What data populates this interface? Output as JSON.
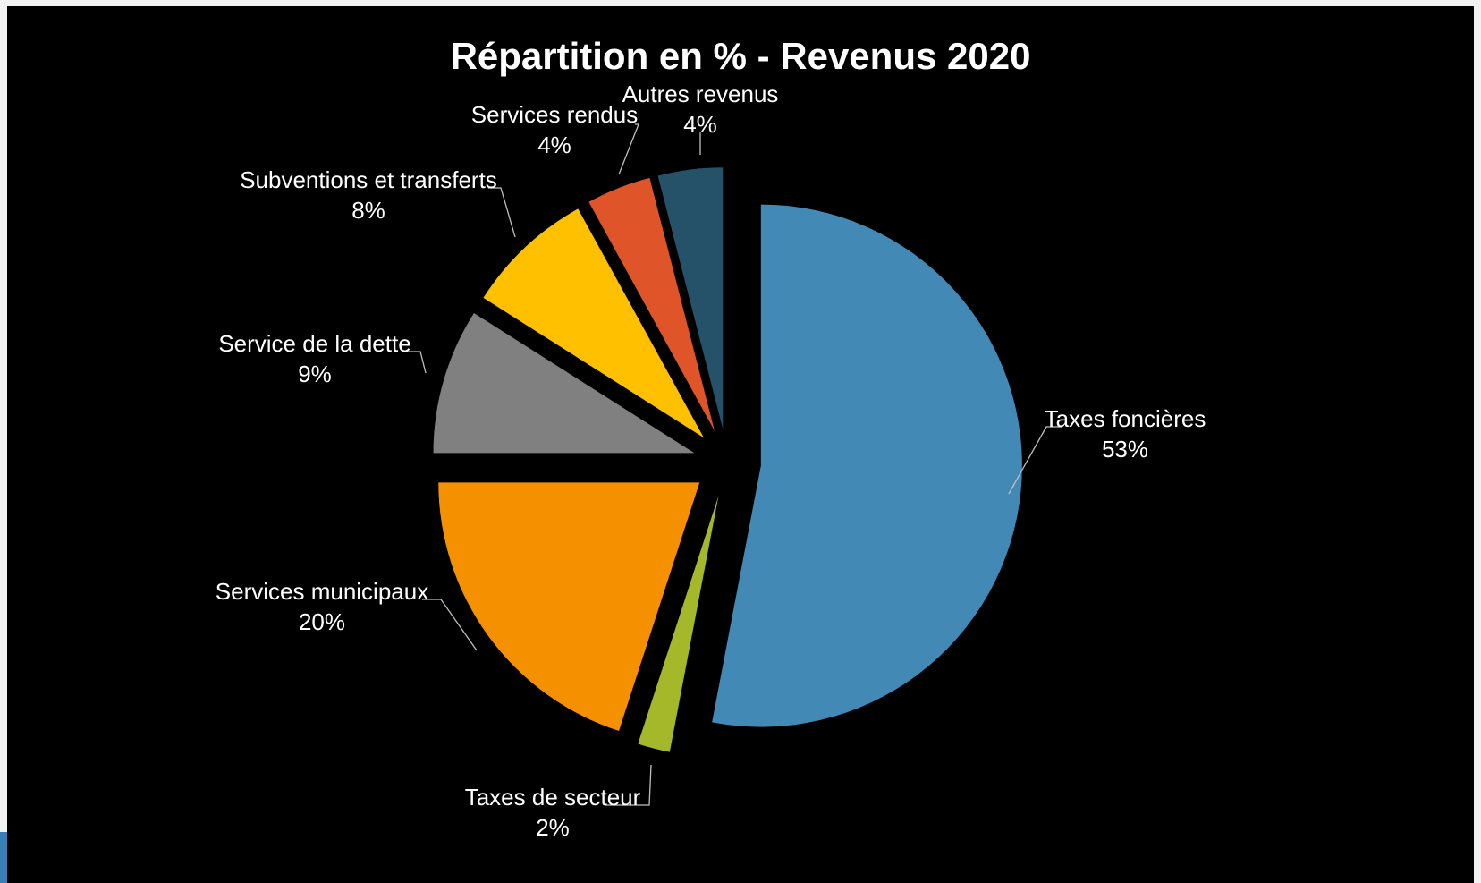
{
  "chart_data": {
    "type": "pie",
    "title": "Répartition en % - Revenus 2020",
    "slices": [
      {
        "name": "Taxes foncières",
        "value": 53,
        "label": "53%",
        "color": "#4389b5"
      },
      {
        "name": "Taxes de secteur",
        "value": 2,
        "label": "2%",
        "color": "#a5b82a"
      },
      {
        "name": "Services municipaux",
        "value": 20,
        "label": "20%",
        "color": "#f59100"
      },
      {
        "name": "Service de la dette",
        "value": 9,
        "label": "9%",
        "color": "#808080"
      },
      {
        "name": "Subventions et transferts",
        "value": 8,
        "label": "8%",
        "color": "#ffc000"
      },
      {
        "name": "Services rendus",
        "value": 4,
        "label": "4%",
        "color": "#e0542a"
      },
      {
        "name": "Autres revenus",
        "value": 4,
        "label": "4%",
        "color": "#265269"
      }
    ],
    "legend": "none",
    "exploded": true
  }
}
